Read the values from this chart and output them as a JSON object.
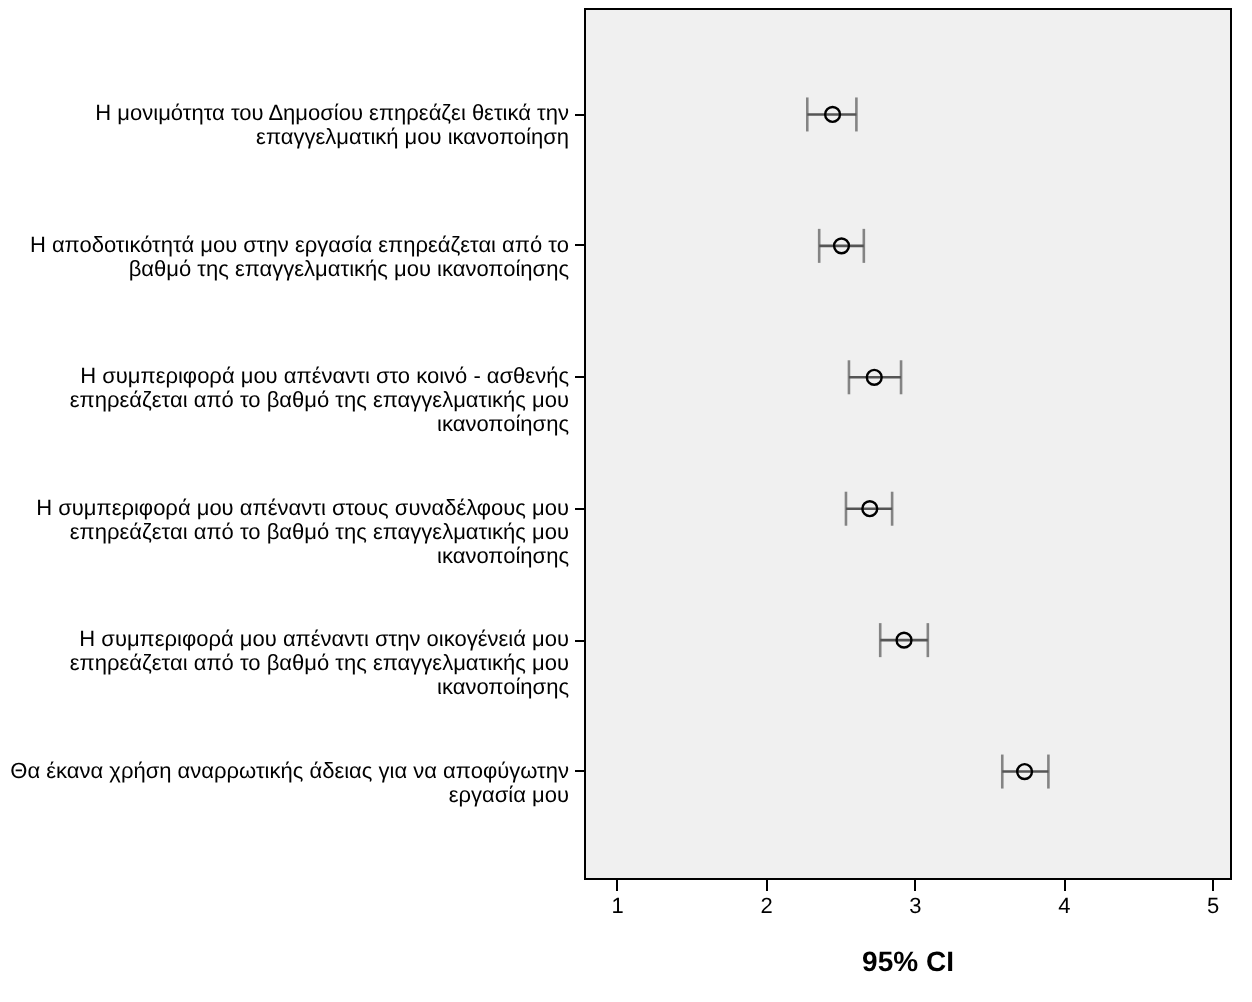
{
  "chart_data": {
    "type": "scatter",
    "orientation": "horizontal",
    "xlabel": "95% CI",
    "categories": [
      "Η μονιμότητα του Δημοσίου επηρεάζει θετικά την επαγγελματική μου ικανοποίηση",
      "Η αποδοτικότητά μου στην εργασία επηρεάζεται από το βαθμό της επαγγελματικής μου ικανοποίησης",
      "Η συμπεριφορά μου απέναντι στο κοινό - ασθενής επηρεάζεται από το βαθμό της επαγγελματικής μου ικανοποίησης",
      "Η συμπεριφορά μου απέναντι στους συναδέλφους μου επηρεάζεται από το βαθμό της επαγγελματικής μου ικανοποίησης",
      "Η συμπεριφορά μου απέναντι στην οικογένειά μου επηρεάζεται από το βαθμό της επαγγελματικής μου ικανοποίησης",
      "Θα έκανα χρήση αναρρωτικής άδειας για να αποφύγωτην εργασία μου"
    ],
    "series": [
      {
        "color": "#000000",
        "values": [
          2.45,
          2.51,
          2.73,
          2.7,
          2.93,
          3.74
        ],
        "errors": [
          [
            2.28,
            2.61
          ],
          [
            2.36,
            2.66
          ],
          [
            2.56,
            2.91
          ],
          [
            2.54,
            2.85
          ],
          [
            2.77,
            3.09
          ],
          [
            3.59,
            3.9
          ]
        ]
      }
    ],
    "xlim": [
      0.78,
      5.12
    ],
    "xticks": [
      1,
      2,
      3,
      4,
      5
    ],
    "marker": "circle",
    "grid": false
  }
}
